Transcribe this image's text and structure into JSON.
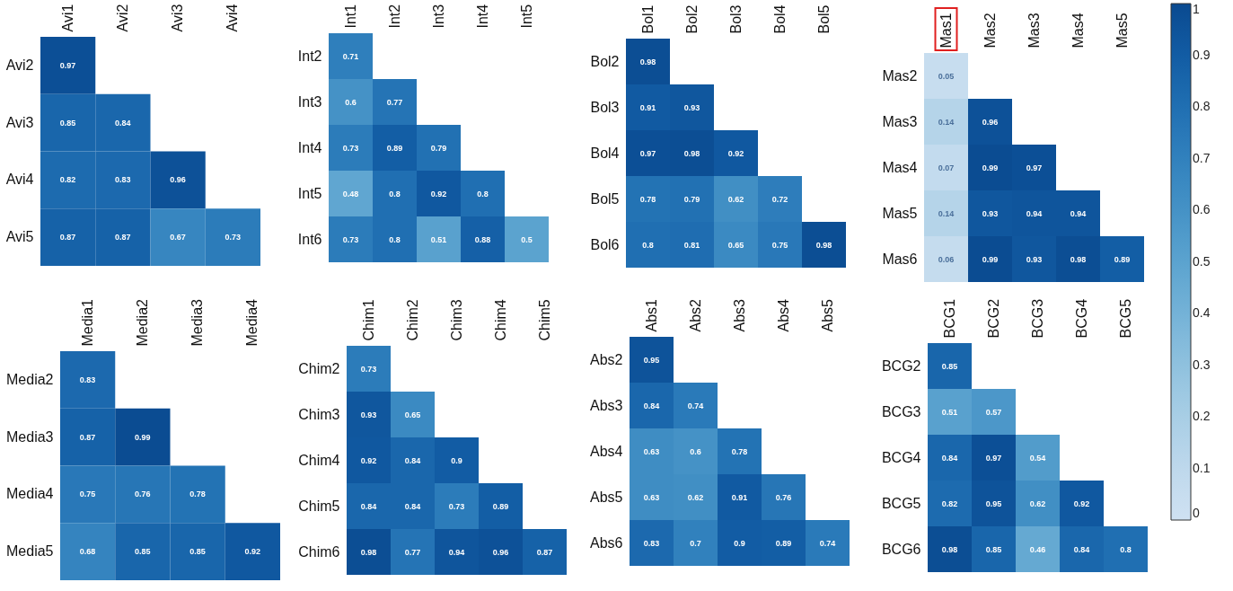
{
  "chart_data": [
    {
      "type": "heatmap",
      "categories": [
        "Avi1",
        "Avi2",
        "Avi3",
        "Avi4"
      ],
      "y_categories": [
        "Avi2",
        "Avi3",
        "Avi4",
        "Avi5"
      ],
      "cells": [
        [
          0.97,
          null,
          null,
          null
        ],
        [
          0.85,
          0.84,
          null,
          null
        ],
        [
          0.82,
          0.83,
          0.96,
          null
        ],
        [
          0.87,
          0.87,
          0.67,
          0.73
        ]
      ],
      "data_labels": true
    },
    {
      "type": "heatmap",
      "categories": [
        "Int1",
        "Int2",
        "Int3",
        "Int4",
        "Int5"
      ],
      "y_categories": [
        "Int2",
        "Int3",
        "Int4",
        "Int5",
        "Int6"
      ],
      "cells": [
        [
          0.71,
          null,
          null,
          null,
          null
        ],
        [
          0.6,
          0.77,
          null,
          null,
          null
        ],
        [
          0.73,
          0.89,
          0.79,
          null,
          null
        ],
        [
          0.48,
          0.8,
          0.92,
          0.8,
          null
        ],
        [
          0.73,
          0.8,
          0.51,
          0.88,
          0.5
        ]
      ],
      "data_labels": true
    },
    {
      "type": "heatmap",
      "categories": [
        "Bol1",
        "Bol2",
        "Bol3",
        "Bol4",
        "Bol5"
      ],
      "y_categories": [
        "Bol2",
        "Bol3",
        "Bol4",
        "Bol5",
        "Bol6"
      ],
      "cells": [
        [
          0.98,
          null,
          null,
          null,
          null
        ],
        [
          0.91,
          0.93,
          null,
          null,
          null
        ],
        [
          0.97,
          0.98,
          0.92,
          null,
          null
        ],
        [
          0.78,
          0.79,
          0.62,
          0.72,
          null
        ],
        [
          0.8,
          0.81,
          0.65,
          0.75,
          0.98
        ]
      ],
      "data_labels": true
    },
    {
      "type": "heatmap",
      "categories": [
        "Mas1",
        "Mas2",
        "Mas3",
        "Mas4",
        "Mas5"
      ],
      "y_categories": [
        "Mas2",
        "Mas3",
        "Mas4",
        "Mas5",
        "Mas6"
      ],
      "cells": [
        [
          0.05,
          null,
          null,
          null,
          null
        ],
        [
          0.14,
          0.96,
          null,
          null,
          null
        ],
        [
          0.07,
          0.99,
          0.97,
          null,
          null
        ],
        [
          0.14,
          0.93,
          0.94,
          0.94,
          null
        ],
        [
          0.06,
          0.99,
          0.93,
          0.98,
          0.89
        ]
      ],
      "clim": [
        0,
        1
      ],
      "cticks": [
        0,
        0.1,
        0.2,
        0.3,
        0.4,
        0.5,
        0.6,
        0.7,
        0.8,
        0.9,
        1
      ],
      "data_labels": true
    },
    {
      "type": "heatmap",
      "categories": [
        "Media1",
        "Media2",
        "Media3",
        "Media4"
      ],
      "y_categories": [
        "Media2",
        "Media3",
        "Media4",
        "Media5"
      ],
      "cells": [
        [
          0.83,
          null,
          null,
          null
        ],
        [
          0.87,
          0.99,
          null,
          null
        ],
        [
          0.75,
          0.76,
          0.78,
          null
        ],
        [
          0.68,
          0.85,
          0.85,
          0.92
        ]
      ],
      "data_labels": true
    },
    {
      "type": "heatmap",
      "categories": [
        "Chim1",
        "Chim2",
        "Chim3",
        "Chim4",
        "Chim5"
      ],
      "y_categories": [
        "Chim2",
        "Chim3",
        "Chim4",
        "Chim5",
        "Chim6"
      ],
      "cells": [
        [
          0.73,
          null,
          null,
          null,
          null
        ],
        [
          0.93,
          0.65,
          null,
          null,
          null
        ],
        [
          0.92,
          0.84,
          0.9,
          null,
          null
        ],
        [
          0.84,
          0.84,
          0.73,
          0.89,
          null
        ],
        [
          0.98,
          0.77,
          0.94,
          0.96,
          0.87
        ]
      ],
      "data_labels": true
    },
    {
      "type": "heatmap",
      "categories": [
        "Abs1",
        "Abs2",
        "Abs3",
        "Abs4",
        "Abs5"
      ],
      "y_categories": [
        "Abs2",
        "Abs3",
        "Abs4",
        "Abs5",
        "Abs6"
      ],
      "cells": [
        [
          0.95,
          null,
          null,
          null,
          null
        ],
        [
          0.84,
          0.74,
          null,
          null,
          null
        ],
        [
          0.63,
          0.6,
          0.78,
          null,
          null
        ],
        [
          0.63,
          0.62,
          0.91,
          0.76,
          null
        ],
        [
          0.83,
          0.7,
          0.9,
          0.89,
          0.74
        ]
      ],
      "data_labels": true
    },
    {
      "type": "heatmap",
      "categories": [
        "BCG1",
        "BCG2",
        "BCG3",
        "BCG4",
        "BCG5"
      ],
      "y_categories": [
        "BCG2",
        "BCG3",
        "BCG4",
        "BCG5",
        "BCG6"
      ],
      "cells": [
        [
          0.85,
          null,
          null,
          null,
          null
        ],
        [
          0.51,
          0.57,
          null,
          null,
          null
        ],
        [
          0.84,
          0.97,
          0.54,
          null,
          null
        ],
        [
          0.82,
          0.95,
          0.62,
          0.92,
          null
        ],
        [
          0.98,
          0.85,
          0.46,
          0.84,
          0.8
        ]
      ],
      "data_labels": true
    }
  ]
}
